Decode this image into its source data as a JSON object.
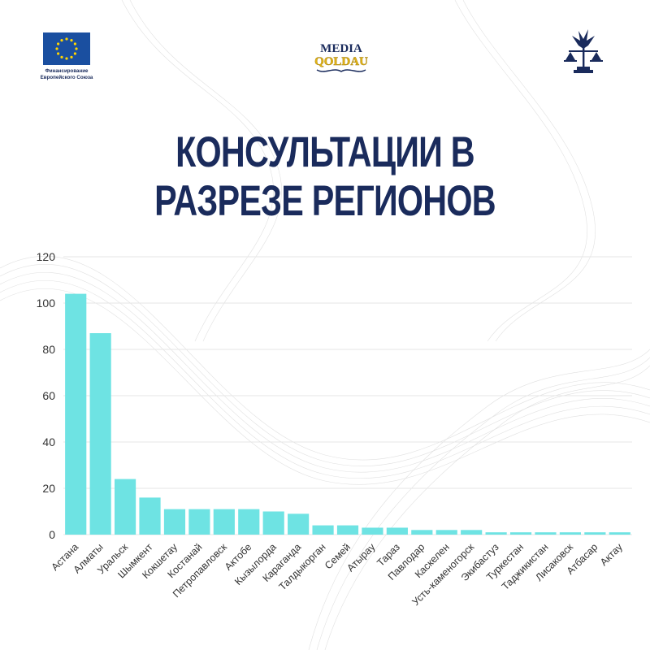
{
  "header": {
    "eu_caption_line1": "Финансирование",
    "eu_caption_line2": "Европейского Союза",
    "media_logo_top": "MEDIA",
    "media_logo_bottom": "QOLDAU"
  },
  "title_lines": [
    "КОНСУЛЬТАЦИИ В",
    "РАЗРЕЗЕ РЕГИОНОВ"
  ],
  "colors": {
    "title": "#1a2b5c",
    "bar": "#6ee3e3",
    "grid": "#e6e6e6",
    "axis_text": "#333333",
    "eu_blue": "#1a4fa0",
    "eu_star": "#ffd500",
    "media_gold": "#e3b416",
    "media_navy": "#1a2b5c"
  },
  "chart_data": {
    "type": "bar",
    "title": "",
    "xlabel": "",
    "ylabel": "",
    "ylim": [
      0,
      120
    ],
    "yticks": [
      0,
      20,
      40,
      60,
      80,
      100,
      120
    ],
    "grid": true,
    "categories": [
      "Астана",
      "Алматы",
      "Уральск",
      "Шымкент",
      "Кокшетау",
      "Костанай",
      "Петропавловск",
      "Актобе",
      "Кызылорда",
      "Караганда",
      "Талдыкорган",
      "Семей",
      "Атырау",
      "Тараз",
      "Павлодар",
      "Каскелен",
      "Усть-каменогорск",
      "Экибастуз",
      "Туркестан",
      "Таджикистан",
      "Лисаковск",
      "Атбасар",
      "Актау"
    ],
    "values": [
      104,
      87,
      24,
      16,
      11,
      11,
      11,
      11,
      10,
      9,
      4,
      4,
      3,
      3,
      2,
      2,
      2,
      1,
      1,
      1,
      1,
      1,
      1
    ]
  }
}
